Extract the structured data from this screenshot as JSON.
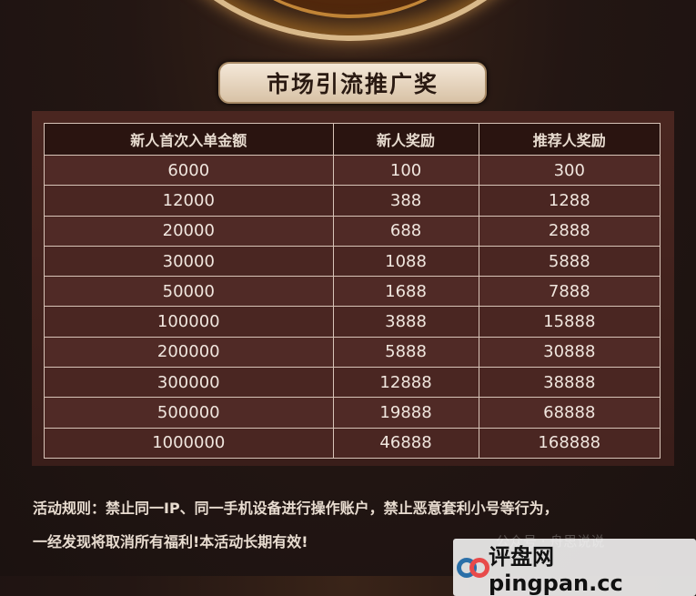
{
  "title": "市场引流推广奖",
  "table": {
    "headers": [
      "新人首次入单金额",
      "新人奖励",
      "推荐人奖励"
    ],
    "rows": [
      [
        "6000",
        "100",
        "300"
      ],
      [
        "12000",
        "388",
        "1288"
      ],
      [
        "20000",
        "688",
        "2888"
      ],
      [
        "30000",
        "1088",
        "5888"
      ],
      [
        "50000",
        "1688",
        "7888"
      ],
      [
        "100000",
        "3888",
        "15888"
      ],
      [
        "200000",
        "5888",
        "30888"
      ],
      [
        "300000",
        "12888",
        "38888"
      ],
      [
        "500000",
        "19888",
        "68888"
      ],
      [
        "1000000",
        "46888",
        "168888"
      ]
    ]
  },
  "rules": {
    "line1": "活动规则：禁止同一IP、同一手机设备进行操作账户，禁止恶意套利小号等行为，",
    "line2": "一经发现将取消所有福利!本活动长期有效!"
  },
  "watermark": "公众号 · 舟思说说",
  "logo": {
    "text": "评盘网 pingpan.cc"
  }
}
